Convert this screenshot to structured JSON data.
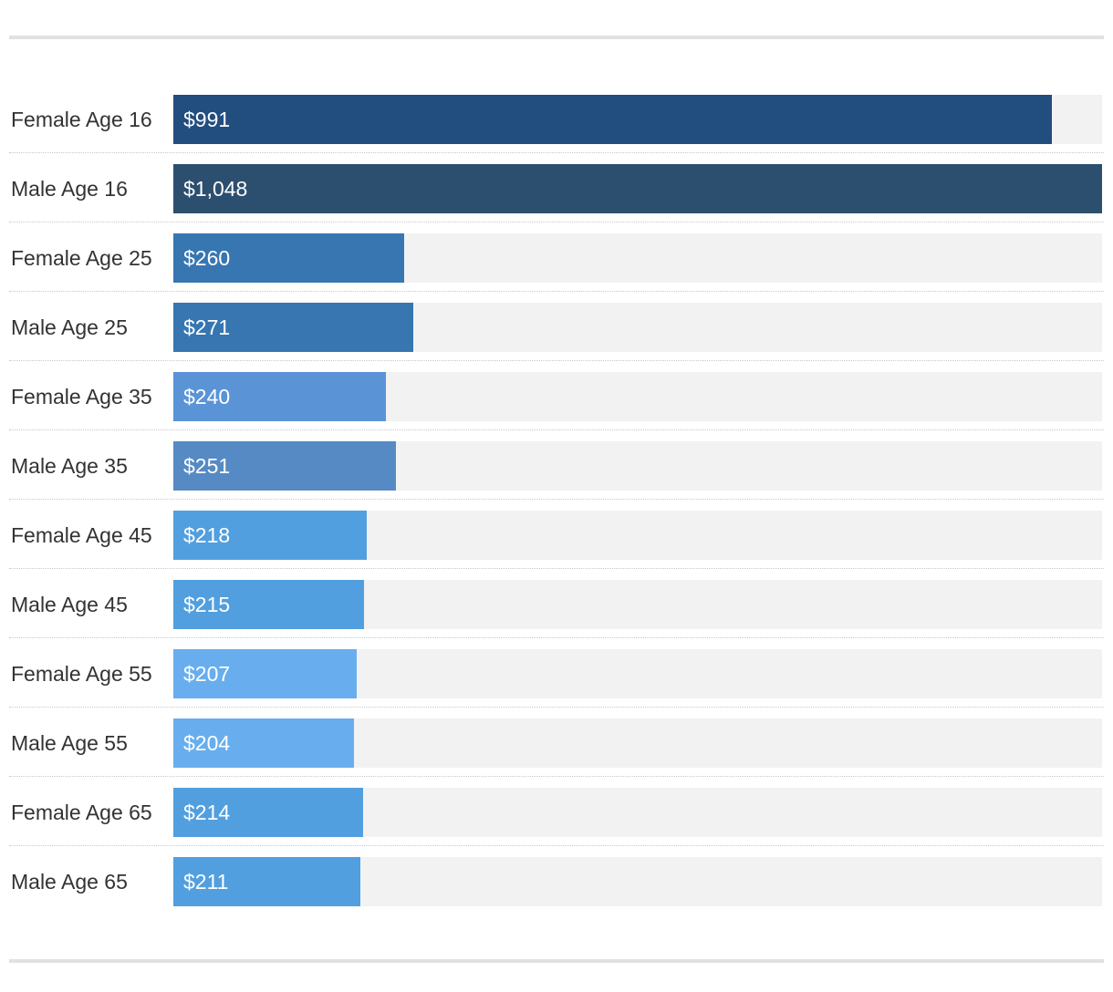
{
  "chart_data": {
    "type": "bar",
    "orientation": "horizontal",
    "categories": [
      "Female Age 16",
      "Male Age 16",
      "Female Age 25",
      "Male Age 25",
      "Female Age 35",
      "Male Age 35",
      "Female Age 45",
      "Male Age 45",
      "Female Age 55",
      "Male Age 55",
      "Female Age 65",
      "Male Age 65"
    ],
    "values": [
      991,
      1048,
      260,
      271,
      240,
      251,
      218,
      215,
      207,
      204,
      214,
      211
    ],
    "value_labels": [
      "$991",
      "$1,048",
      "$260",
      "$271",
      "$240",
      "$251",
      "$218",
      "$215",
      "$207",
      "$204",
      "$214",
      "$211"
    ],
    "bar_colors": [
      "#224d7f",
      "#2c4f6f",
      "#3776b1",
      "#3776b1",
      "#5a93d6",
      "#568ac4",
      "#529fdf",
      "#529fdf",
      "#68aeee",
      "#68aeee",
      "#529fdf",
      "#529fdf"
    ],
    "track_color": "#f2f2f2",
    "xlim": [
      0,
      1048
    ],
    "title": "",
    "xlabel": "",
    "ylabel": "",
    "grid": false,
    "legend": "none"
  }
}
